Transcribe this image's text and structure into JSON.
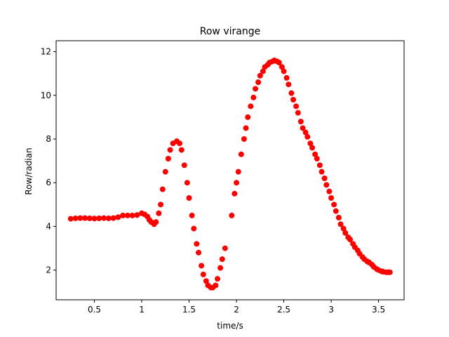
{
  "chart_data": {
    "type": "scatter",
    "title": "Row virange",
    "x_label": "time/s",
    "y_label": "Row/radian",
    "color": "#ff0000",
    "x": [
      0.25,
      0.3,
      0.35,
      0.4,
      0.45,
      0.5,
      0.55,
      0.6,
      0.65,
      0.7,
      0.75,
      0.8,
      0.85,
      0.9,
      0.95,
      1.0,
      1.03,
      1.06,
      1.08,
      1.1,
      1.13,
      1.15,
      1.18,
      1.2,
      1.22,
      1.25,
      1.28,
      1.3,
      1.33,
      1.37,
      1.4,
      1.42,
      1.45,
      1.48,
      1.5,
      1.53,
      1.55,
      1.58,
      1.6,
      1.63,
      1.65,
      1.68,
      1.7,
      1.73,
      1.75,
      1.78,
      1.8,
      1.83,
      1.85,
      1.88,
      1.95,
      1.98,
      2.0,
      2.02,
      2.05,
      2.08,
      2.1,
      2.12,
      2.15,
      2.18,
      2.2,
      2.23,
      2.25,
      2.28,
      2.3,
      2.33,
      2.35,
      2.38,
      2.4,
      2.43,
      2.45,
      2.48,
      2.5,
      2.53,
      2.55,
      2.58,
      2.6,
      2.63,
      2.65,
      2.68,
      2.7,
      2.73,
      2.75,
      2.78,
      2.8,
      2.83,
      2.85,
      2.88,
      2.9,
      2.93,
      2.95,
      2.98,
      3.0,
      3.03,
      3.05,
      3.08,
      3.1,
      3.13,
      3.15,
      3.18,
      3.2,
      3.23,
      3.25,
      3.28,
      3.3,
      3.33,
      3.35,
      3.38,
      3.4,
      3.43,
      3.45,
      3.48,
      3.5,
      3.53,
      3.55,
      3.58,
      3.6,
      3.62
    ],
    "values": [
      4.35,
      4.37,
      4.38,
      4.38,
      4.37,
      4.36,
      4.37,
      4.38,
      4.37,
      4.38,
      4.42,
      4.5,
      4.5,
      4.5,
      4.52,
      4.6,
      4.55,
      4.45,
      4.3,
      4.2,
      4.1,
      4.2,
      4.6,
      5.0,
      5.7,
      6.5,
      7.1,
      7.5,
      7.8,
      7.9,
      7.8,
      7.5,
      6.8,
      6.0,
      5.3,
      4.5,
      3.9,
      3.2,
      2.8,
      2.2,
      1.8,
      1.5,
      1.3,
      1.2,
      1.2,
      1.3,
      1.6,
      2.1,
      2.5,
      3.0,
      4.5,
      5.5,
      6.0,
      6.5,
      7.3,
      8.0,
      8.5,
      9.0,
      9.5,
      9.9,
      10.3,
      10.6,
      10.9,
      11.1,
      11.3,
      11.4,
      11.5,
      11.55,
      11.6,
      11.55,
      11.5,
      11.3,
      11.1,
      10.8,
      10.5,
      10.1,
      9.8,
      9.5,
      9.2,
      8.8,
      8.5,
      8.3,
      8.1,
      7.8,
      7.6,
      7.3,
      7.1,
      6.8,
      6.5,
      6.2,
      5.9,
      5.6,
      5.3,
      5.0,
      4.7,
      4.4,
      4.1,
      3.9,
      3.7,
      3.5,
      3.4,
      3.2,
      3.05,
      2.9,
      2.75,
      2.6,
      2.5,
      2.4,
      2.35,
      2.25,
      2.15,
      2.05,
      2.0,
      1.95,
      1.92,
      1.9,
      1.9,
      1.9
    ],
    "xlim": [
      0.096,
      3.77
    ],
    "ylim": [
      0.64,
      12.5
    ],
    "xticks": [
      0.5,
      1.0,
      1.5,
      2.0,
      2.5,
      3.0,
      3.5
    ],
    "yticks": [
      2,
      4,
      6,
      8,
      10,
      12
    ],
    "grid": false
  }
}
